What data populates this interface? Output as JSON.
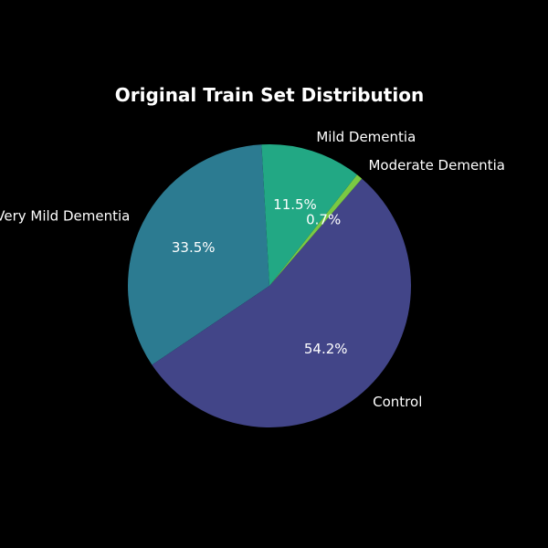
{
  "chart_data": {
    "type": "pie",
    "title": "Original Train Set Distribution",
    "slices": [
      {
        "label": "Very Mild Dementia",
        "value": 33.5,
        "pct_label": "33.5%",
        "color": "#2c7b91"
      },
      {
        "label": "Control",
        "value": 54.2,
        "pct_label": "54.2%",
        "color": "#424588"
      },
      {
        "label": "Moderate Dementia",
        "value": 0.7,
        "pct_label": "0.7%",
        "color": "#7ac943"
      },
      {
        "label": "Mild Dementia",
        "value": 11.5,
        "pct_label": "11.5%",
        "color": "#22a884"
      }
    ],
    "legend": "none"
  }
}
